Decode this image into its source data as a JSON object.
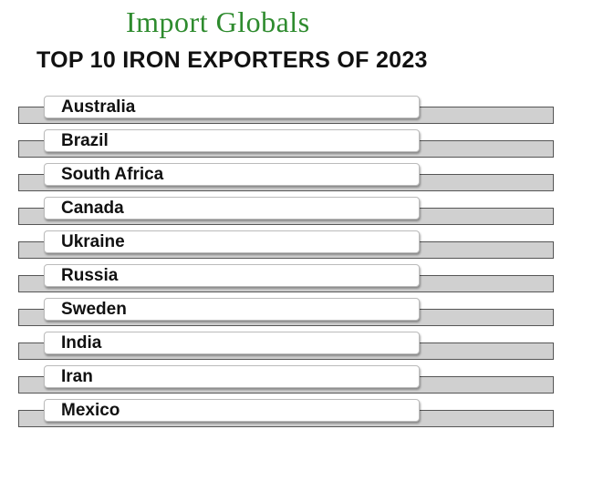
{
  "header": {
    "brand": "Import Globals",
    "title": "TOP 10 IRON EXPORTERS OF 2023"
  },
  "list": {
    "items": [
      "Australia",
      "Brazil",
      "South Africa",
      "Canada",
      "Ukraine",
      "Russia",
      "Sweden",
      "India",
      "Iran",
      "Mexico"
    ]
  }
}
